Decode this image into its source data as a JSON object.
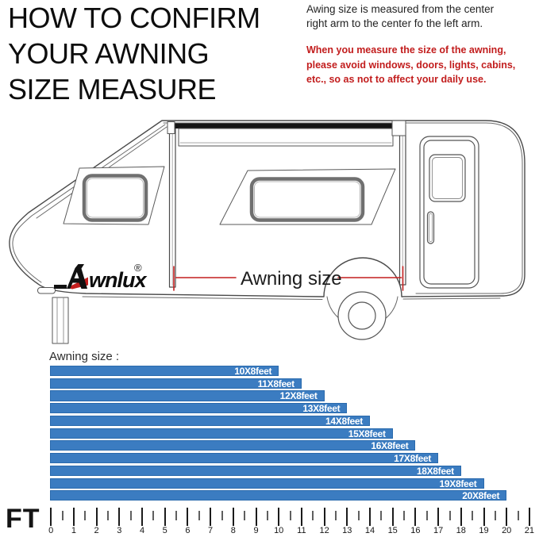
{
  "title": {
    "text": "HOW TO CONFIRM\nYOUR AWNING\nSIZE MEASURE"
  },
  "intro": {
    "text": "Awing size is measured from the center\nright arm to the center fo the left arm."
  },
  "warning": {
    "text": "When you measure the size of the awning,\nplease avoid windows, doors, lights, cabins,\netc., so as not to affect your daily use.",
    "color": "#c21d1d"
  },
  "trailer": {
    "logo_text": "wnlux",
    "registered_mark": "®",
    "dimension_label": "Awning size",
    "accent_red": "#c41f1f",
    "line_color": "#4a4a4a"
  },
  "chart": {
    "label": "Awning size :",
    "bar_color": "#3b7cc1",
    "bar_border": "#2a6aad",
    "bar_text_color": "#ffffff"
  },
  "chart_data": {
    "type": "bar",
    "orientation": "horizontal",
    "title": "Awning size :",
    "categories": [
      "10X8feet",
      "11X8feet",
      "12X8feet",
      "13X8feet",
      "14X8feet",
      "15X8feet",
      "16X8feet",
      "17X8feet",
      "18X8feet",
      "19X8feet",
      "20X8feet"
    ],
    "values_feet": [
      10,
      11,
      12,
      13,
      14,
      15,
      16,
      17,
      18,
      19,
      20
    ],
    "xlabel": "FT",
    "x_axis": {
      "label": "FT",
      "min": 0,
      "max": 21,
      "tick_step": 1,
      "minor_tick_step": 0.5
    },
    "grid": false,
    "legend": false
  }
}
